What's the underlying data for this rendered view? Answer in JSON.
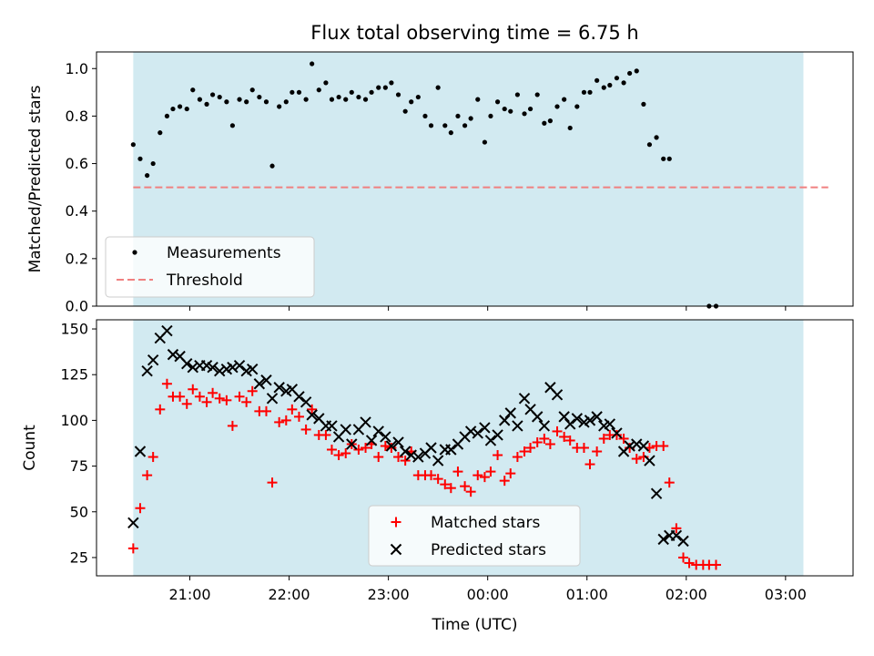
{
  "colors": {
    "observing_band": "#add8e6",
    "measurement": "#000000",
    "threshold": "#f08080",
    "matched": "#ff0000",
    "predicted": "#000000"
  },
  "chart_data": [
    {
      "type": "scatter",
      "title": "Flux total observing time = 6.75 h",
      "ylabel": "Matched/Predicted stars",
      "xlabel": "",
      "x_axis": "time (hours, 21 = 21:00 UTC, 24 = 00:00 next day)",
      "xlim": [
        20.06,
        27.68
      ],
      "ylim": [
        0.0,
        1.07
      ],
      "yticks": [
        "0.0",
        "0.2",
        "0.4",
        "0.6",
        "0.8",
        "1.0"
      ],
      "ytick_values": [
        0,
        0.2,
        0.4,
        0.6,
        0.8,
        1.0
      ],
      "observing_span": [
        20.43,
        27.18
      ],
      "grid": false,
      "legend": {
        "position": "lower-left",
        "entries": [
          "Measurements",
          "Threshold"
        ]
      },
      "threshold": 0.5,
      "series": [
        {
          "name": "Measurements",
          "marker": "dot",
          "points": [
            [
              20.43,
              0.68
            ],
            [
              20.5,
              0.62
            ],
            [
              20.57,
              0.55
            ],
            [
              20.63,
              0.6
            ],
            [
              20.7,
              0.73
            ],
            [
              20.77,
              0.8
            ],
            [
              20.83,
              0.83
            ],
            [
              20.9,
              0.84
            ],
            [
              20.97,
              0.83
            ],
            [
              21.03,
              0.91
            ],
            [
              21.1,
              0.87
            ],
            [
              21.17,
              0.85
            ],
            [
              21.23,
              0.89
            ],
            [
              21.3,
              0.88
            ],
            [
              21.37,
              0.86
            ],
            [
              21.43,
              0.76
            ],
            [
              21.5,
              0.87
            ],
            [
              21.57,
              0.86
            ],
            [
              21.63,
              0.91
            ],
            [
              21.7,
              0.88
            ],
            [
              21.77,
              0.86
            ],
            [
              21.83,
              0.59
            ],
            [
              21.9,
              0.84
            ],
            [
              21.97,
              0.86
            ],
            [
              22.03,
              0.9
            ],
            [
              22.1,
              0.9
            ],
            [
              22.17,
              0.87
            ],
            [
              22.23,
              1.02
            ],
            [
              22.3,
              0.91
            ],
            [
              22.37,
              0.94
            ],
            [
              22.43,
              0.87
            ],
            [
              22.5,
              0.88
            ],
            [
              22.57,
              0.87
            ],
            [
              22.63,
              0.9
            ],
            [
              22.7,
              0.88
            ],
            [
              22.77,
              0.87
            ],
            [
              22.83,
              0.9
            ],
            [
              22.9,
              0.92
            ],
            [
              22.97,
              0.92
            ],
            [
              23.03,
              0.94
            ],
            [
              23.1,
              0.89
            ],
            [
              23.17,
              0.82
            ],
            [
              23.23,
              0.86
            ],
            [
              23.3,
              0.88
            ],
            [
              23.37,
              0.8
            ],
            [
              23.43,
              0.76
            ],
            [
              23.5,
              0.92
            ],
            [
              23.57,
              0.76
            ],
            [
              23.63,
              0.73
            ],
            [
              23.7,
              0.8
            ],
            [
              23.77,
              0.76
            ],
            [
              23.83,
              0.79
            ],
            [
              23.9,
              0.87
            ],
            [
              23.97,
              0.69
            ],
            [
              24.03,
              0.8
            ],
            [
              24.1,
              0.86
            ],
            [
              24.17,
              0.83
            ],
            [
              24.23,
              0.82
            ],
            [
              24.3,
              0.89
            ],
            [
              24.37,
              0.81
            ],
            [
              24.43,
              0.83
            ],
            [
              24.5,
              0.89
            ],
            [
              24.57,
              0.77
            ],
            [
              24.63,
              0.78
            ],
            [
              24.7,
              0.84
            ],
            [
              24.77,
              0.87
            ],
            [
              24.83,
              0.75
            ],
            [
              24.9,
              0.84
            ],
            [
              24.97,
              0.9
            ],
            [
              25.03,
              0.9
            ],
            [
              25.1,
              0.95
            ],
            [
              25.17,
              0.92
            ],
            [
              25.23,
              0.93
            ],
            [
              25.3,
              0.96
            ],
            [
              25.37,
              0.94
            ],
            [
              25.43,
              0.98
            ],
            [
              25.5,
              0.99
            ],
            [
              25.57,
              0.85
            ],
            [
              25.63,
              0.68
            ],
            [
              25.7,
              0.71
            ],
            [
              25.77,
              0.62
            ],
            [
              25.83,
              0.62
            ],
            [
              26.23,
              0.0
            ],
            [
              26.3,
              0.0
            ]
          ]
        }
      ]
    },
    {
      "type": "scatter",
      "title": "",
      "ylabel": "Count",
      "xlabel": "Time (UTC)",
      "xlim": [
        20.06,
        27.68
      ],
      "ylim": [
        15,
        155
      ],
      "yticks": [
        "25",
        "50",
        "75",
        "100",
        "125",
        "150"
      ],
      "ytick_values": [
        25,
        50,
        75,
        100,
        125,
        150
      ],
      "xticks": [
        "21:00",
        "22:00",
        "23:00",
        "00:00",
        "01:00",
        "02:00",
        "03:00"
      ],
      "xtick_values": [
        21,
        22,
        23,
        24,
        25,
        26,
        27
      ],
      "observing_span": [
        20.43,
        27.18
      ],
      "grid": false,
      "legend": {
        "position": "lower-center",
        "entries": [
          "Matched stars",
          "Predicted stars"
        ]
      },
      "series": [
        {
          "name": "Matched stars",
          "marker": "plus",
          "points": [
            [
              20.43,
              30
            ],
            [
              20.5,
              52
            ],
            [
              20.57,
              70
            ],
            [
              20.63,
              80
            ],
            [
              20.7,
              106
            ],
            [
              20.77,
              120
            ],
            [
              20.83,
              113
            ],
            [
              20.9,
              113
            ],
            [
              20.97,
              109
            ],
            [
              21.03,
              117
            ],
            [
              21.1,
              113
            ],
            [
              21.17,
              110
            ],
            [
              21.23,
              115
            ],
            [
              21.3,
              112
            ],
            [
              21.37,
              111
            ],
            [
              21.43,
              97
            ],
            [
              21.5,
              113
            ],
            [
              21.57,
              110
            ],
            [
              21.63,
              116
            ],
            [
              21.7,
              105
            ],
            [
              21.77,
              105
            ],
            [
              21.83,
              66
            ],
            [
              21.9,
              99
            ],
            [
              21.97,
              100
            ],
            [
              22.03,
              106
            ],
            [
              22.1,
              102
            ],
            [
              22.17,
              95
            ],
            [
              22.23,
              106
            ],
            [
              22.3,
              92
            ],
            [
              22.37,
              92
            ],
            [
              22.43,
              84
            ],
            [
              22.5,
              81
            ],
            [
              22.57,
              82
            ],
            [
              22.63,
              87
            ],
            [
              22.7,
              84
            ],
            [
              22.77,
              85
            ],
            [
              22.83,
              87
            ],
            [
              22.9,
              80
            ],
            [
              22.97,
              86
            ],
            [
              23.03,
              85
            ],
            [
              23.1,
              80
            ],
            [
              23.17,
              78
            ],
            [
              23.23,
              83
            ],
            [
              23.3,
              70
            ],
            [
              23.37,
              70
            ],
            [
              23.43,
              70
            ],
            [
              23.5,
              68
            ],
            [
              23.57,
              65
            ],
            [
              23.63,
              63
            ],
            [
              23.7,
              72
            ],
            [
              23.77,
              64
            ],
            [
              23.83,
              61
            ],
            [
              23.9,
              70
            ],
            [
              23.97,
              69
            ],
            [
              24.03,
              72
            ],
            [
              24.1,
              81
            ],
            [
              24.17,
              67
            ],
            [
              24.23,
              71
            ],
            [
              24.3,
              80
            ],
            [
              24.37,
              83
            ],
            [
              24.43,
              85
            ],
            [
              24.5,
              88
            ],
            [
              24.57,
              90
            ],
            [
              24.63,
              87
            ],
            [
              24.7,
              94
            ],
            [
              24.77,
              91
            ],
            [
              24.83,
              89
            ],
            [
              24.9,
              85
            ],
            [
              24.97,
              85
            ],
            [
              25.03,
              76
            ],
            [
              25.1,
              83
            ],
            [
              25.17,
              90
            ],
            [
              25.23,
              92
            ],
            [
              25.3,
              92
            ],
            [
              25.37,
              90
            ],
            [
              25.43,
              85
            ],
            [
              25.5,
              79
            ],
            [
              25.57,
              80
            ],
            [
              25.63,
              85
            ],
            [
              25.7,
              86
            ],
            [
              25.77,
              86
            ],
            [
              25.83,
              66
            ],
            [
              25.9,
              41
            ],
            [
              25.97,
              25
            ],
            [
              26.03,
              22
            ],
            [
              26.1,
              21
            ],
            [
              26.17,
              21
            ],
            [
              26.23,
              21
            ],
            [
              26.3,
              21
            ]
          ]
        },
        {
          "name": "Predicted stars",
          "marker": "x",
          "points": [
            [
              20.43,
              44
            ],
            [
              20.5,
              83
            ],
            [
              20.57,
              127
            ],
            [
              20.63,
              133
            ],
            [
              20.7,
              145
            ],
            [
              20.77,
              149
            ],
            [
              20.83,
              136
            ],
            [
              20.9,
              135
            ],
            [
              20.97,
              131
            ],
            [
              21.03,
              129
            ],
            [
              21.1,
              130
            ],
            [
              21.17,
              130
            ],
            [
              21.23,
              129
            ],
            [
              21.3,
              127
            ],
            [
              21.37,
              128
            ],
            [
              21.43,
              129
            ],
            [
              21.5,
              130
            ],
            [
              21.57,
              127
            ],
            [
              21.63,
              128
            ],
            [
              21.7,
              120
            ],
            [
              21.77,
              122
            ],
            [
              21.83,
              112
            ],
            [
              21.9,
              118
            ],
            [
              21.97,
              116
            ],
            [
              22.03,
              117
            ],
            [
              22.1,
              113
            ],
            [
              22.17,
              110
            ],
            [
              22.23,
              103
            ],
            [
              22.3,
              101
            ],
            [
              22.37,
              97
            ],
            [
              22.43,
              97
            ],
            [
              22.5,
              91
            ],
            [
              22.57,
              95
            ],
            [
              22.63,
              87
            ],
            [
              22.7,
              95
            ],
            [
              22.77,
              99
            ],
            [
              22.83,
              89
            ],
            [
              22.9,
              94
            ],
            [
              22.97,
              91
            ],
            [
              23.03,
              86
            ],
            [
              23.1,
              88
            ],
            [
              23.17,
              83
            ],
            [
              23.23,
              81
            ],
            [
              23.3,
              80
            ],
            [
              23.37,
              82
            ],
            [
              23.43,
              85
            ],
            [
              23.5,
              78
            ],
            [
              23.57,
              84
            ],
            [
              23.63,
              84
            ],
            [
              23.7,
              87
            ],
            [
              23.77,
              91
            ],
            [
              23.83,
              94
            ],
            [
              23.9,
              93
            ],
            [
              23.97,
              96
            ],
            [
              24.03,
              89
            ],
            [
              24.1,
              92
            ],
            [
              24.17,
              100
            ],
            [
              24.23,
              104
            ],
            [
              24.3,
              97
            ],
            [
              24.37,
              112
            ],
            [
              24.43,
              106
            ],
            [
              24.5,
              102
            ],
            [
              24.57,
              97
            ],
            [
              24.63,
              118
            ],
            [
              24.7,
              114
            ],
            [
              24.77,
              102
            ],
            [
              24.83,
              98
            ],
            [
              24.9,
              101
            ],
            [
              24.97,
              99
            ],
            [
              25.03,
              100
            ],
            [
              25.1,
              102
            ],
            [
              25.17,
              97
            ],
            [
              25.23,
              98
            ],
            [
              25.3,
              93
            ],
            [
              25.37,
              83
            ],
            [
              25.43,
              86
            ],
            [
              25.5,
              87
            ],
            [
              25.57,
              86
            ],
            [
              25.63,
              78
            ],
            [
              25.7,
              60
            ],
            [
              25.77,
              35
            ],
            [
              25.83,
              37
            ],
            [
              25.9,
              37
            ],
            [
              25.97,
              34
            ]
          ]
        }
      ]
    }
  ]
}
